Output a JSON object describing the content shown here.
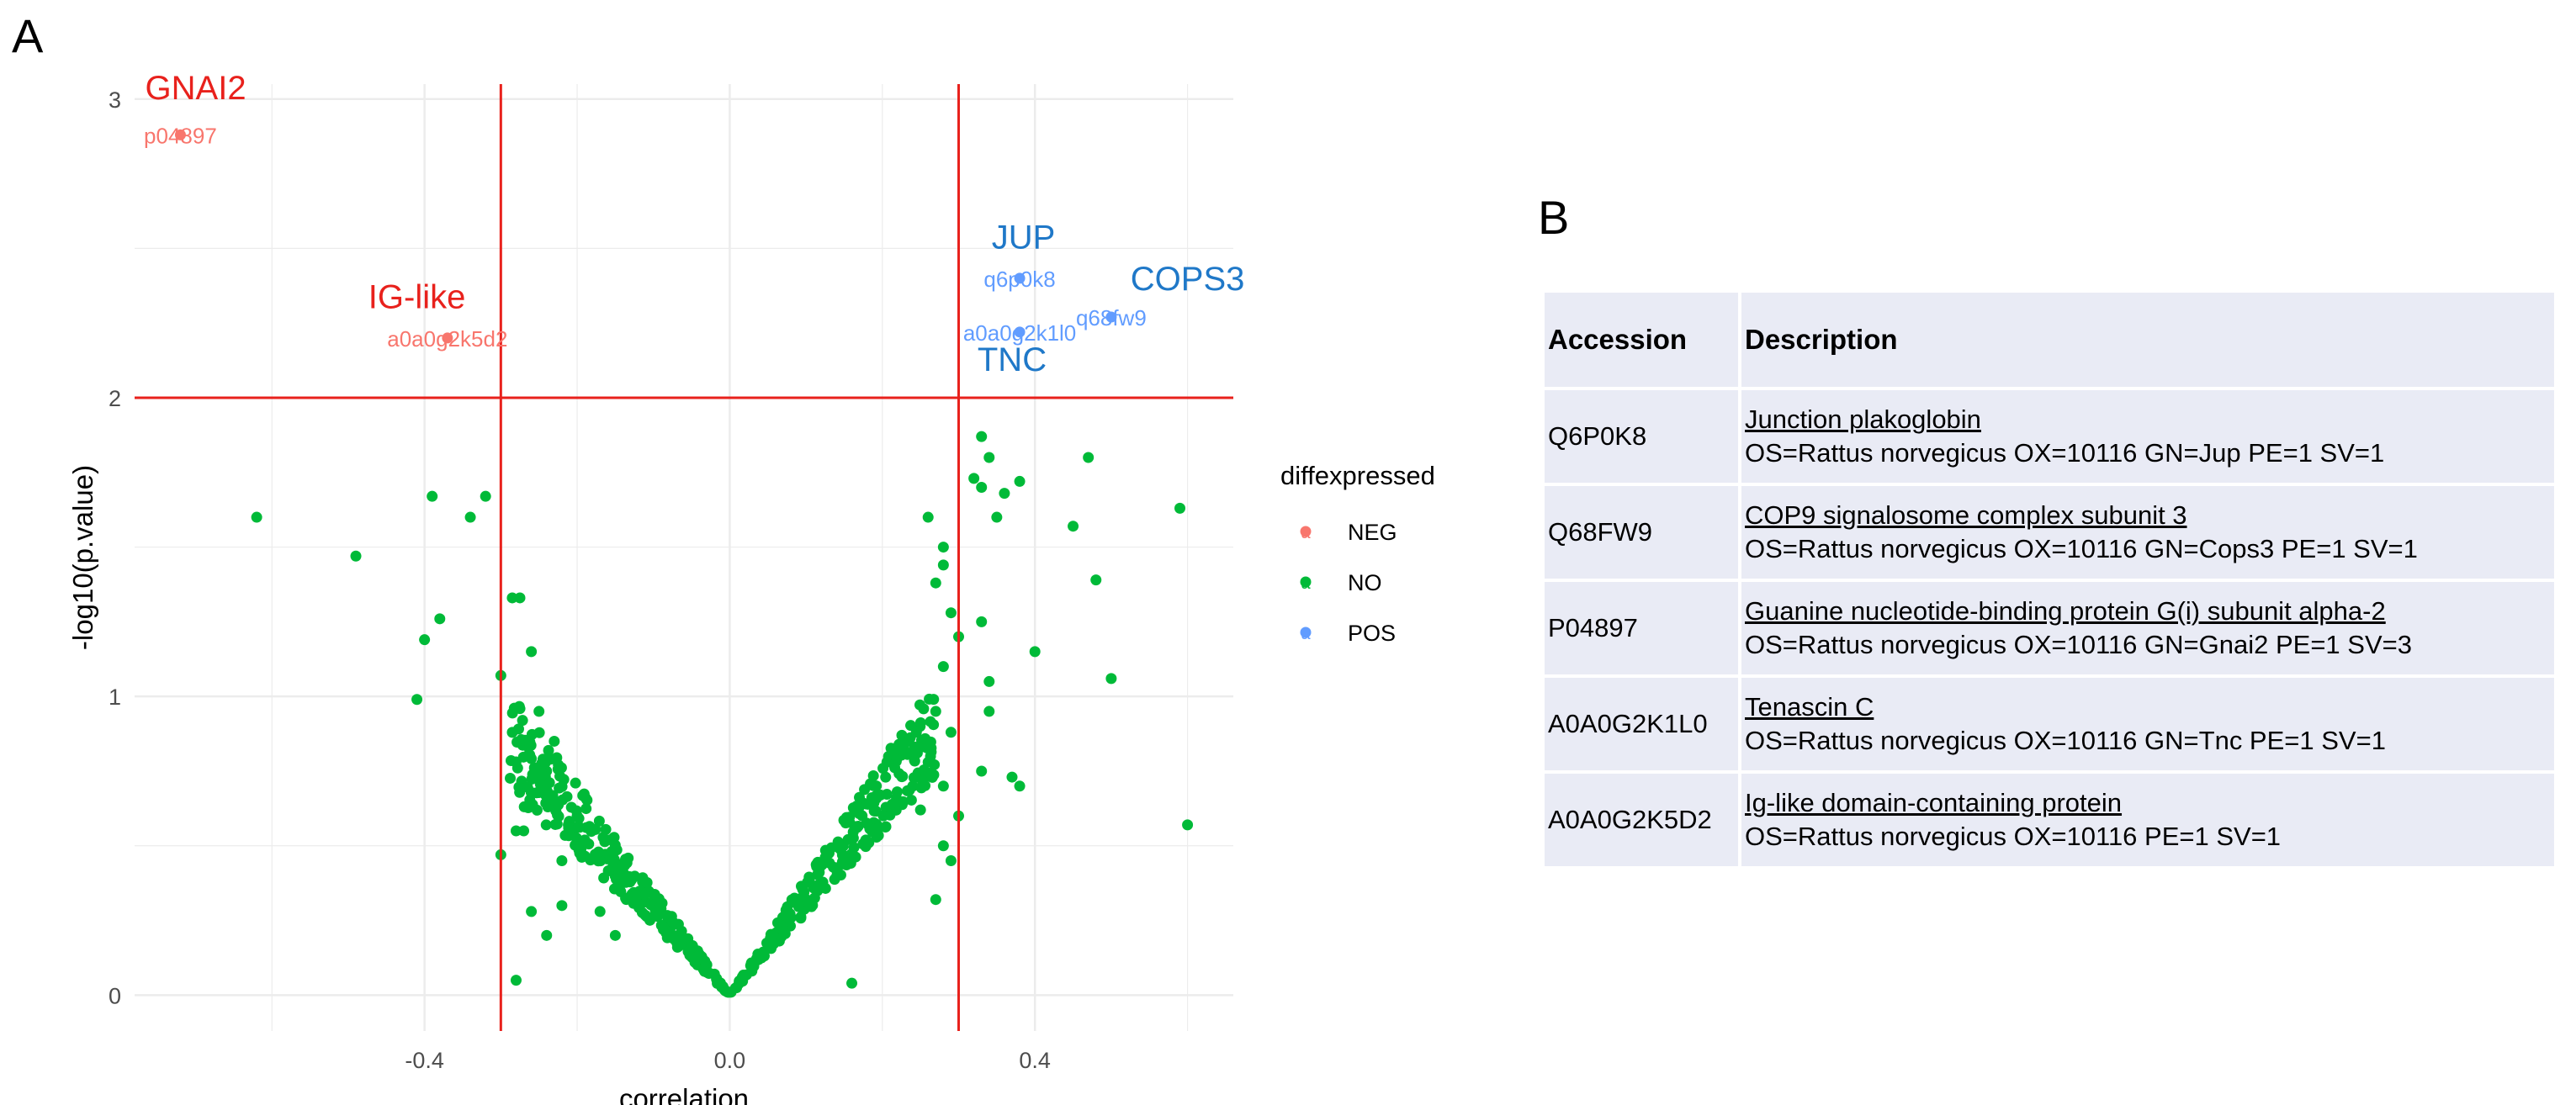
{
  "panel_labels": {
    "a": "A",
    "b": "B"
  },
  "chart_data": {
    "type": "scatter",
    "title": "",
    "xlabel": "correlation",
    "ylabel": "-log10(p.value)",
    "xlim": [
      -0.78,
      0.66
    ],
    "ylim": [
      -0.12,
      3.05
    ],
    "x_ticks": [
      -0.4,
      0.0,
      0.4
    ],
    "x_tick_labels": [
      "-0.4",
      "0.0",
      "0.4"
    ],
    "y_ticks": [
      0,
      1,
      2,
      3
    ],
    "y_tick_labels": [
      "0",
      "1",
      "2",
      "3"
    ],
    "grid": true,
    "thresholds": {
      "x": [
        -0.3,
        0.3
      ],
      "y": 2
    },
    "threshold_color": "#e8211c",
    "legend": {
      "title": "diffexpressed",
      "placement": "right",
      "entries": [
        {
          "name": "NEG",
          "color": "#f8766d"
        },
        {
          "name": "NO",
          "color": "#00ba38"
        },
        {
          "name": "POS",
          "color": "#619cff"
        }
      ]
    },
    "series": [
      {
        "name": "NEG",
        "color": "#f8766d",
        "points": [
          {
            "x": -0.72,
            "y": 2.88,
            "label": "p04897"
          },
          {
            "x": -0.37,
            "y": 2.2,
            "label": "a0a0g2k5d2"
          }
        ]
      },
      {
        "name": "POS",
        "color": "#619cff",
        "points": [
          {
            "x": 0.38,
            "y": 2.4,
            "label": "q6p0k8"
          },
          {
            "x": 0.38,
            "y": 2.22,
            "label": "a0a0g2k1l0"
          },
          {
            "x": 0.5,
            "y": 2.27,
            "label": "q68fw9"
          }
        ]
      },
      {
        "name": "NO",
        "color": "#00ba38",
        "points": [
          {
            "x": -0.62,
            "y": 1.6
          },
          {
            "x": -0.49,
            "y": 1.47
          },
          {
            "x": -0.39,
            "y": 1.67
          },
          {
            "x": -0.4,
            "y": 1.19
          },
          {
            "x": -0.41,
            "y": 0.99
          },
          {
            "x": -0.38,
            "y": 1.26
          },
          {
            "x": -0.34,
            "y": 1.6
          },
          {
            "x": -0.32,
            "y": 1.67
          },
          {
            "x": -0.285,
            "y": 1.33
          },
          {
            "x": -0.275,
            "y": 1.33
          },
          {
            "x": -0.3,
            "y": 1.07
          },
          {
            "x": -0.28,
            "y": 0.55
          },
          {
            "x": -0.27,
            "y": 0.55
          },
          {
            "x": -0.3,
            "y": 0.47
          },
          {
            "x": -0.28,
            "y": 0.05
          },
          {
            "x": -0.23,
            "y": 0.85
          },
          {
            "x": -0.2,
            "y": 0.6
          },
          {
            "x": -0.22,
            "y": 0.45
          },
          {
            "x": -0.24,
            "y": 0.2
          },
          {
            "x": -0.26,
            "y": 0.28
          },
          {
            "x": -0.26,
            "y": 1.15
          },
          {
            "x": -0.25,
            "y": 0.95
          },
          {
            "x": -0.24,
            "y": 0.75
          },
          {
            "x": -0.22,
            "y": 0.3
          },
          {
            "x": -0.17,
            "y": 0.28
          },
          {
            "x": -0.15,
            "y": 0.2
          },
          {
            "x": 0.16,
            "y": 0.04
          },
          {
            "x": 0.26,
            "y": 1.6
          },
          {
            "x": 0.28,
            "y": 1.5
          },
          {
            "x": 0.28,
            "y": 1.44
          },
          {
            "x": 0.27,
            "y": 1.38
          },
          {
            "x": 0.29,
            "y": 1.28
          },
          {
            "x": 0.3,
            "y": 1.2
          },
          {
            "x": 0.28,
            "y": 1.1
          },
          {
            "x": 0.27,
            "y": 0.95
          },
          {
            "x": 0.29,
            "y": 0.88
          },
          {
            "x": 0.26,
            "y": 0.78
          },
          {
            "x": 0.28,
            "y": 0.7
          },
          {
            "x": 0.3,
            "y": 0.6
          },
          {
            "x": 0.28,
            "y": 0.5
          },
          {
            "x": 0.29,
            "y": 0.45
          },
          {
            "x": 0.27,
            "y": 0.32
          },
          {
            "x": 0.25,
            "y": 0.62
          },
          {
            "x": 0.24,
            "y": 0.7
          },
          {
            "x": 0.33,
            "y": 1.87
          },
          {
            "x": 0.34,
            "y": 1.8
          },
          {
            "x": 0.32,
            "y": 1.73
          },
          {
            "x": 0.33,
            "y": 1.7
          },
          {
            "x": 0.35,
            "y": 1.6
          },
          {
            "x": 0.36,
            "y": 1.68
          },
          {
            "x": 0.34,
            "y": 1.05
          },
          {
            "x": 0.33,
            "y": 0.75
          },
          {
            "x": 0.33,
            "y": 1.25
          },
          {
            "x": 0.34,
            "y": 0.95
          },
          {
            "x": 0.37,
            "y": 0.73
          },
          {
            "x": 0.38,
            "y": 0.7
          },
          {
            "x": 0.4,
            "y": 1.15
          },
          {
            "x": 0.45,
            "y": 1.57
          },
          {
            "x": 0.47,
            "y": 1.8
          },
          {
            "x": 0.48,
            "y": 1.39
          },
          {
            "x": 0.5,
            "y": 1.06
          },
          {
            "x": 0.59,
            "y": 1.63
          },
          {
            "x": 0.6,
            "y": 0.57
          },
          {
            "x": 0.38,
            "y": 1.72
          }
        ]
      }
    ]
  },
  "gene_labels": [
    {
      "text": "GNAI2",
      "color": "#e8211c",
      "x": -0.7,
      "y": 3.0
    },
    {
      "text": "IG-like",
      "color": "#e8211c",
      "x": -0.41,
      "y": 2.3
    },
    {
      "text": "JUP",
      "color": "#1f78c8",
      "x": 0.385,
      "y": 2.5
    },
    {
      "text": "COPS3",
      "color": "#1f78c8",
      "x": 0.6,
      "y": 2.36
    },
    {
      "text": "TNC",
      "color": "#1f78c8",
      "x": 0.37,
      "y": 2.09
    }
  ],
  "table": {
    "headers": {
      "accession": "Accession",
      "description": "Description"
    },
    "rows": [
      {
        "accession": "Q6P0K8",
        "title": "Junction plakoglobin",
        "detail": "OS=Rattus norvegicus OX=10116 GN=Jup PE=1 SV=1"
      },
      {
        "accession": "Q68FW9",
        "title": "COP9 signalosome complex subunit 3",
        "detail": "OS=Rattus norvegicus OX=10116 GN=Cops3 PE=1 SV=1"
      },
      {
        "accession": "P04897",
        "title": "Guanine nucleotide-binding protein G(i) subunit alpha-2",
        "detail": "OS=Rattus norvegicus OX=10116 GN=Gnai2 PE=1 SV=3"
      },
      {
        "accession": "A0A0G2K1L0",
        "title": "Tenascin C",
        "detail": "OS=Rattus norvegicus OX=10116 GN=Tnc PE=1 SV=1"
      },
      {
        "accession": "A0A0G2K5D2",
        "title": "Ig-like domain-containing protein",
        "detail": "OS=Rattus norvegicus OX=10116 PE=1 SV=1"
      }
    ]
  }
}
